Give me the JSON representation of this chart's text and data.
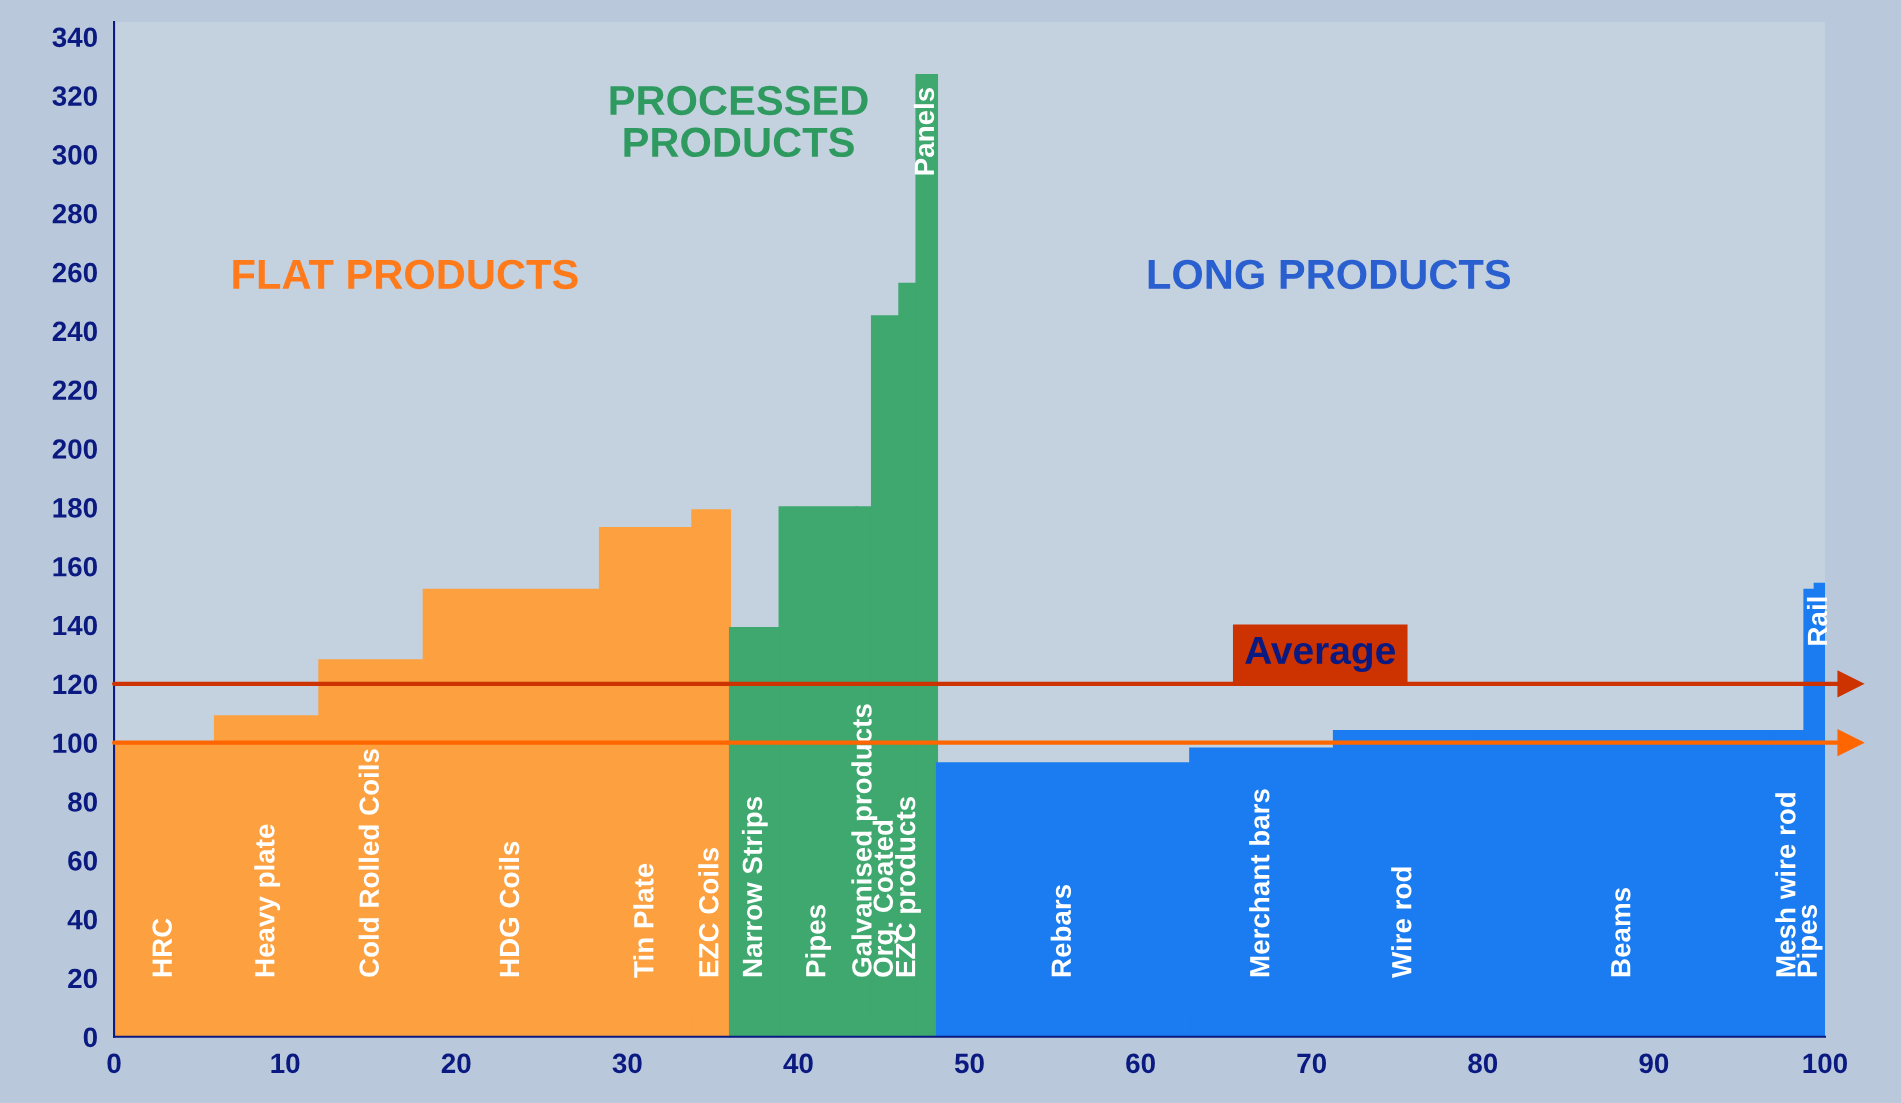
{
  "chart_data": {
    "type": "histogram",
    "bins": [
      0,
      5.9,
      12.0,
      18.1,
      28.4,
      33.8,
      36.0,
      38.9,
      43.4,
      44.3,
      45.9,
      46.9,
      48.1,
      62.9,
      71.3,
      79.5,
      96.9,
      98.8,
      99.4,
      100
    ],
    "values": [
      100,
      109,
      128,
      152,
      173,
      179,
      139,
      180,
      180,
      245,
      256,
      327,
      93,
      98,
      104,
      104,
      104,
      152,
      154
    ],
    "categories": [
      "HRC",
      "Heavy plate",
      "Cold Rolled Coils",
      "HDG Coils",
      "Tin Plate",
      "EZC Coils",
      "Narrow Strips",
      "Pipes",
      "Galvanised products",
      "Org. Coated",
      "EZC products",
      "Panels",
      "Rebars",
      "Merchant bars",
      "Wire rod",
      "Beams",
      "Mesh wire rod",
      "Pipes",
      "Rail"
    ],
    "colors": [
      "#fca040",
      "#fca040",
      "#fca040",
      "#fca040",
      "#fca040",
      "#fca040",
      "#3ea86e",
      "#3ea86e",
      "#3ea86e",
      "#3ea86e",
      "#3ea86e",
      "#3ea86e",
      "#1a7cf0",
      "#1a7cf0",
      "#1a7cf0",
      "#1a7cf0",
      "#1a7cf0",
      "#1a7cf0",
      "#1a7cf0"
    ],
    "annotations": [
      "FLAT PRODUCTS",
      "PROCESSED\nPRODUCTS",
      "LONG PRODUCTS"
    ],
    "ref_lines": [
      {
        "axis": "y",
        "value": 120,
        "label": "Average",
        "color": "#cc3300"
      },
      {
        "axis": "y",
        "value": 100,
        "color": "#ff6600"
      }
    ],
    "xlim": [
      0,
      100
    ],
    "ylim": [
      0,
      345
    ],
    "xticks": [
      0,
      10,
      20,
      30,
      40,
      50,
      60,
      70,
      80,
      90,
      100
    ],
    "yticks": [
      0,
      20,
      40,
      60,
      80,
      100,
      120,
      140,
      160,
      180,
      200,
      220,
      240,
      260,
      280,
      300,
      320,
      340
    ],
    "grid": false,
    "legend": false
  }
}
